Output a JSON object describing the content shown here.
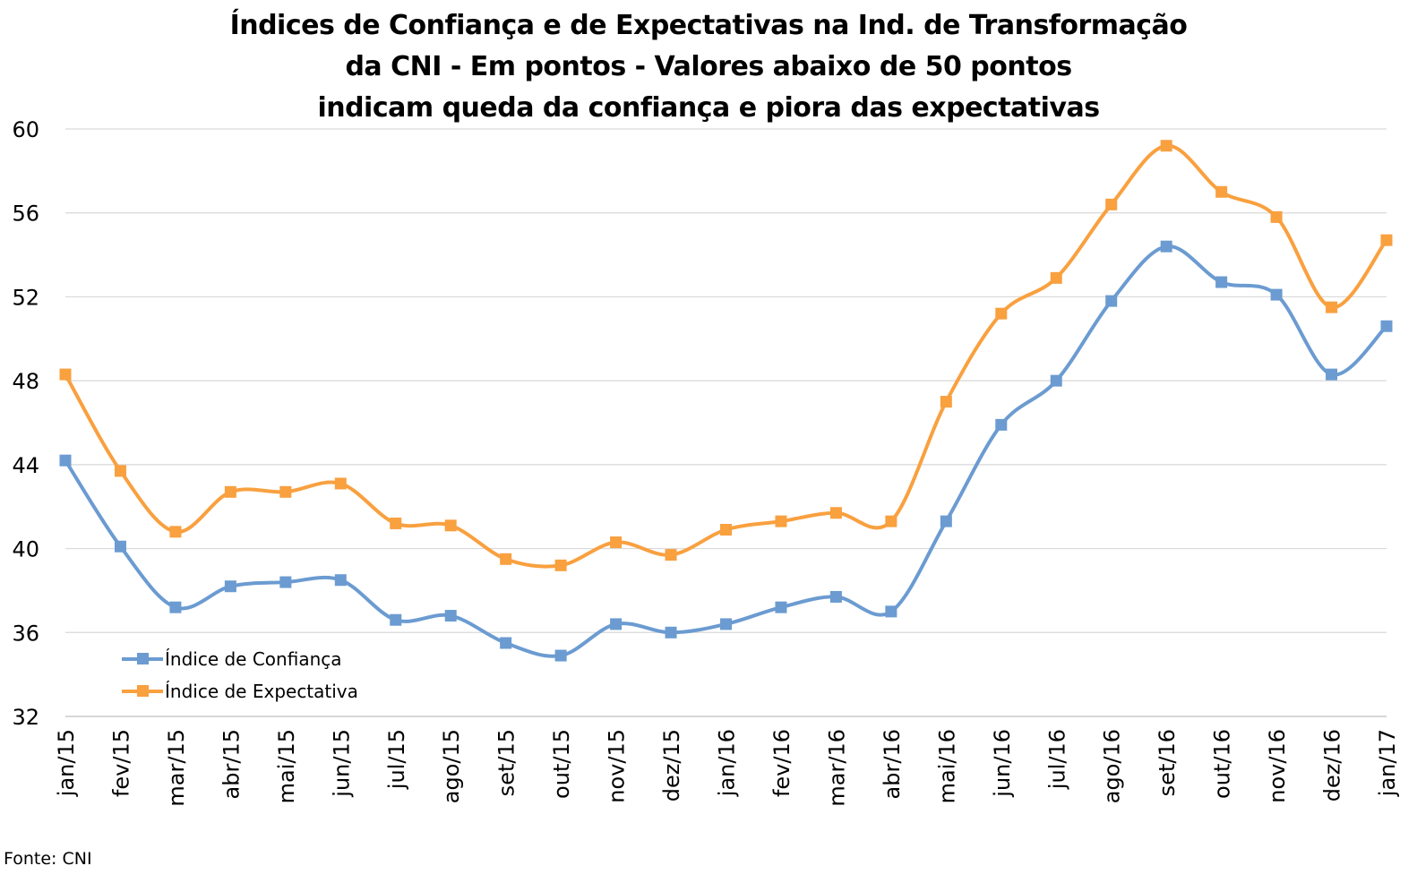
{
  "title": {
    "line1": "Índices de Confiança e de Expectativas na Ind. de Transformação",
    "line2": "da CNI - Em pontos - Valores abaixo de 50 pontos",
    "line3": "indicam queda da confiança e piora das expectativas"
  },
  "source": "Fonte: CNI",
  "colors": {
    "confianca": "#6B9BD1",
    "expectativa": "#F9A03F",
    "grid": "#D9D9D9"
  },
  "chart_data": {
    "type": "line",
    "title": "Índices de Confiança e de Expectativas na Ind. de Transformação da CNI - Em pontos - Valores abaixo de 50 pontos indicam queda da confiança e piora das expectativas",
    "xlabel": "",
    "ylabel": "",
    "ylim": [
      32,
      60
    ],
    "yticks": [
      32,
      36,
      40,
      44,
      48,
      52,
      56,
      60
    ],
    "grid": true,
    "legend_position": "bottom-left",
    "line_style": "smooth",
    "categories": [
      "jan/15",
      "fev/15",
      "mar/15",
      "abr/15",
      "mai/15",
      "jun/15",
      "jul/15",
      "ago/15",
      "set/15",
      "out/15",
      "nov/15",
      "dez/15",
      "jan/16",
      "fev/16",
      "mar/16",
      "abr/16",
      "mai/16",
      "jun/16",
      "jul/16",
      "ago/16",
      "set/16",
      "out/16",
      "nov/16",
      "dez/16",
      "jan/17"
    ],
    "series": [
      {
        "name": "Índice de Confiança",
        "color": "#6B9BD1",
        "values": [
          44.2,
          40.1,
          37.2,
          38.2,
          38.4,
          38.5,
          36.6,
          36.8,
          35.5,
          34.9,
          36.4,
          36.0,
          36.4,
          37.2,
          37.7,
          37.0,
          41.3,
          45.9,
          48.0,
          51.8,
          54.4,
          52.7,
          52.1,
          48.3,
          50.6
        ]
      },
      {
        "name": "Índice de Expectativa",
        "color": "#F9A03F",
        "values": [
          48.3,
          43.7,
          40.8,
          42.7,
          42.7,
          43.1,
          41.2,
          41.1,
          39.5,
          39.2,
          40.3,
          39.7,
          40.9,
          41.3,
          41.7,
          41.3,
          47.0,
          51.2,
          52.9,
          56.4,
          59.2,
          57.0,
          55.8,
          51.5,
          54.7
        ]
      }
    ]
  }
}
